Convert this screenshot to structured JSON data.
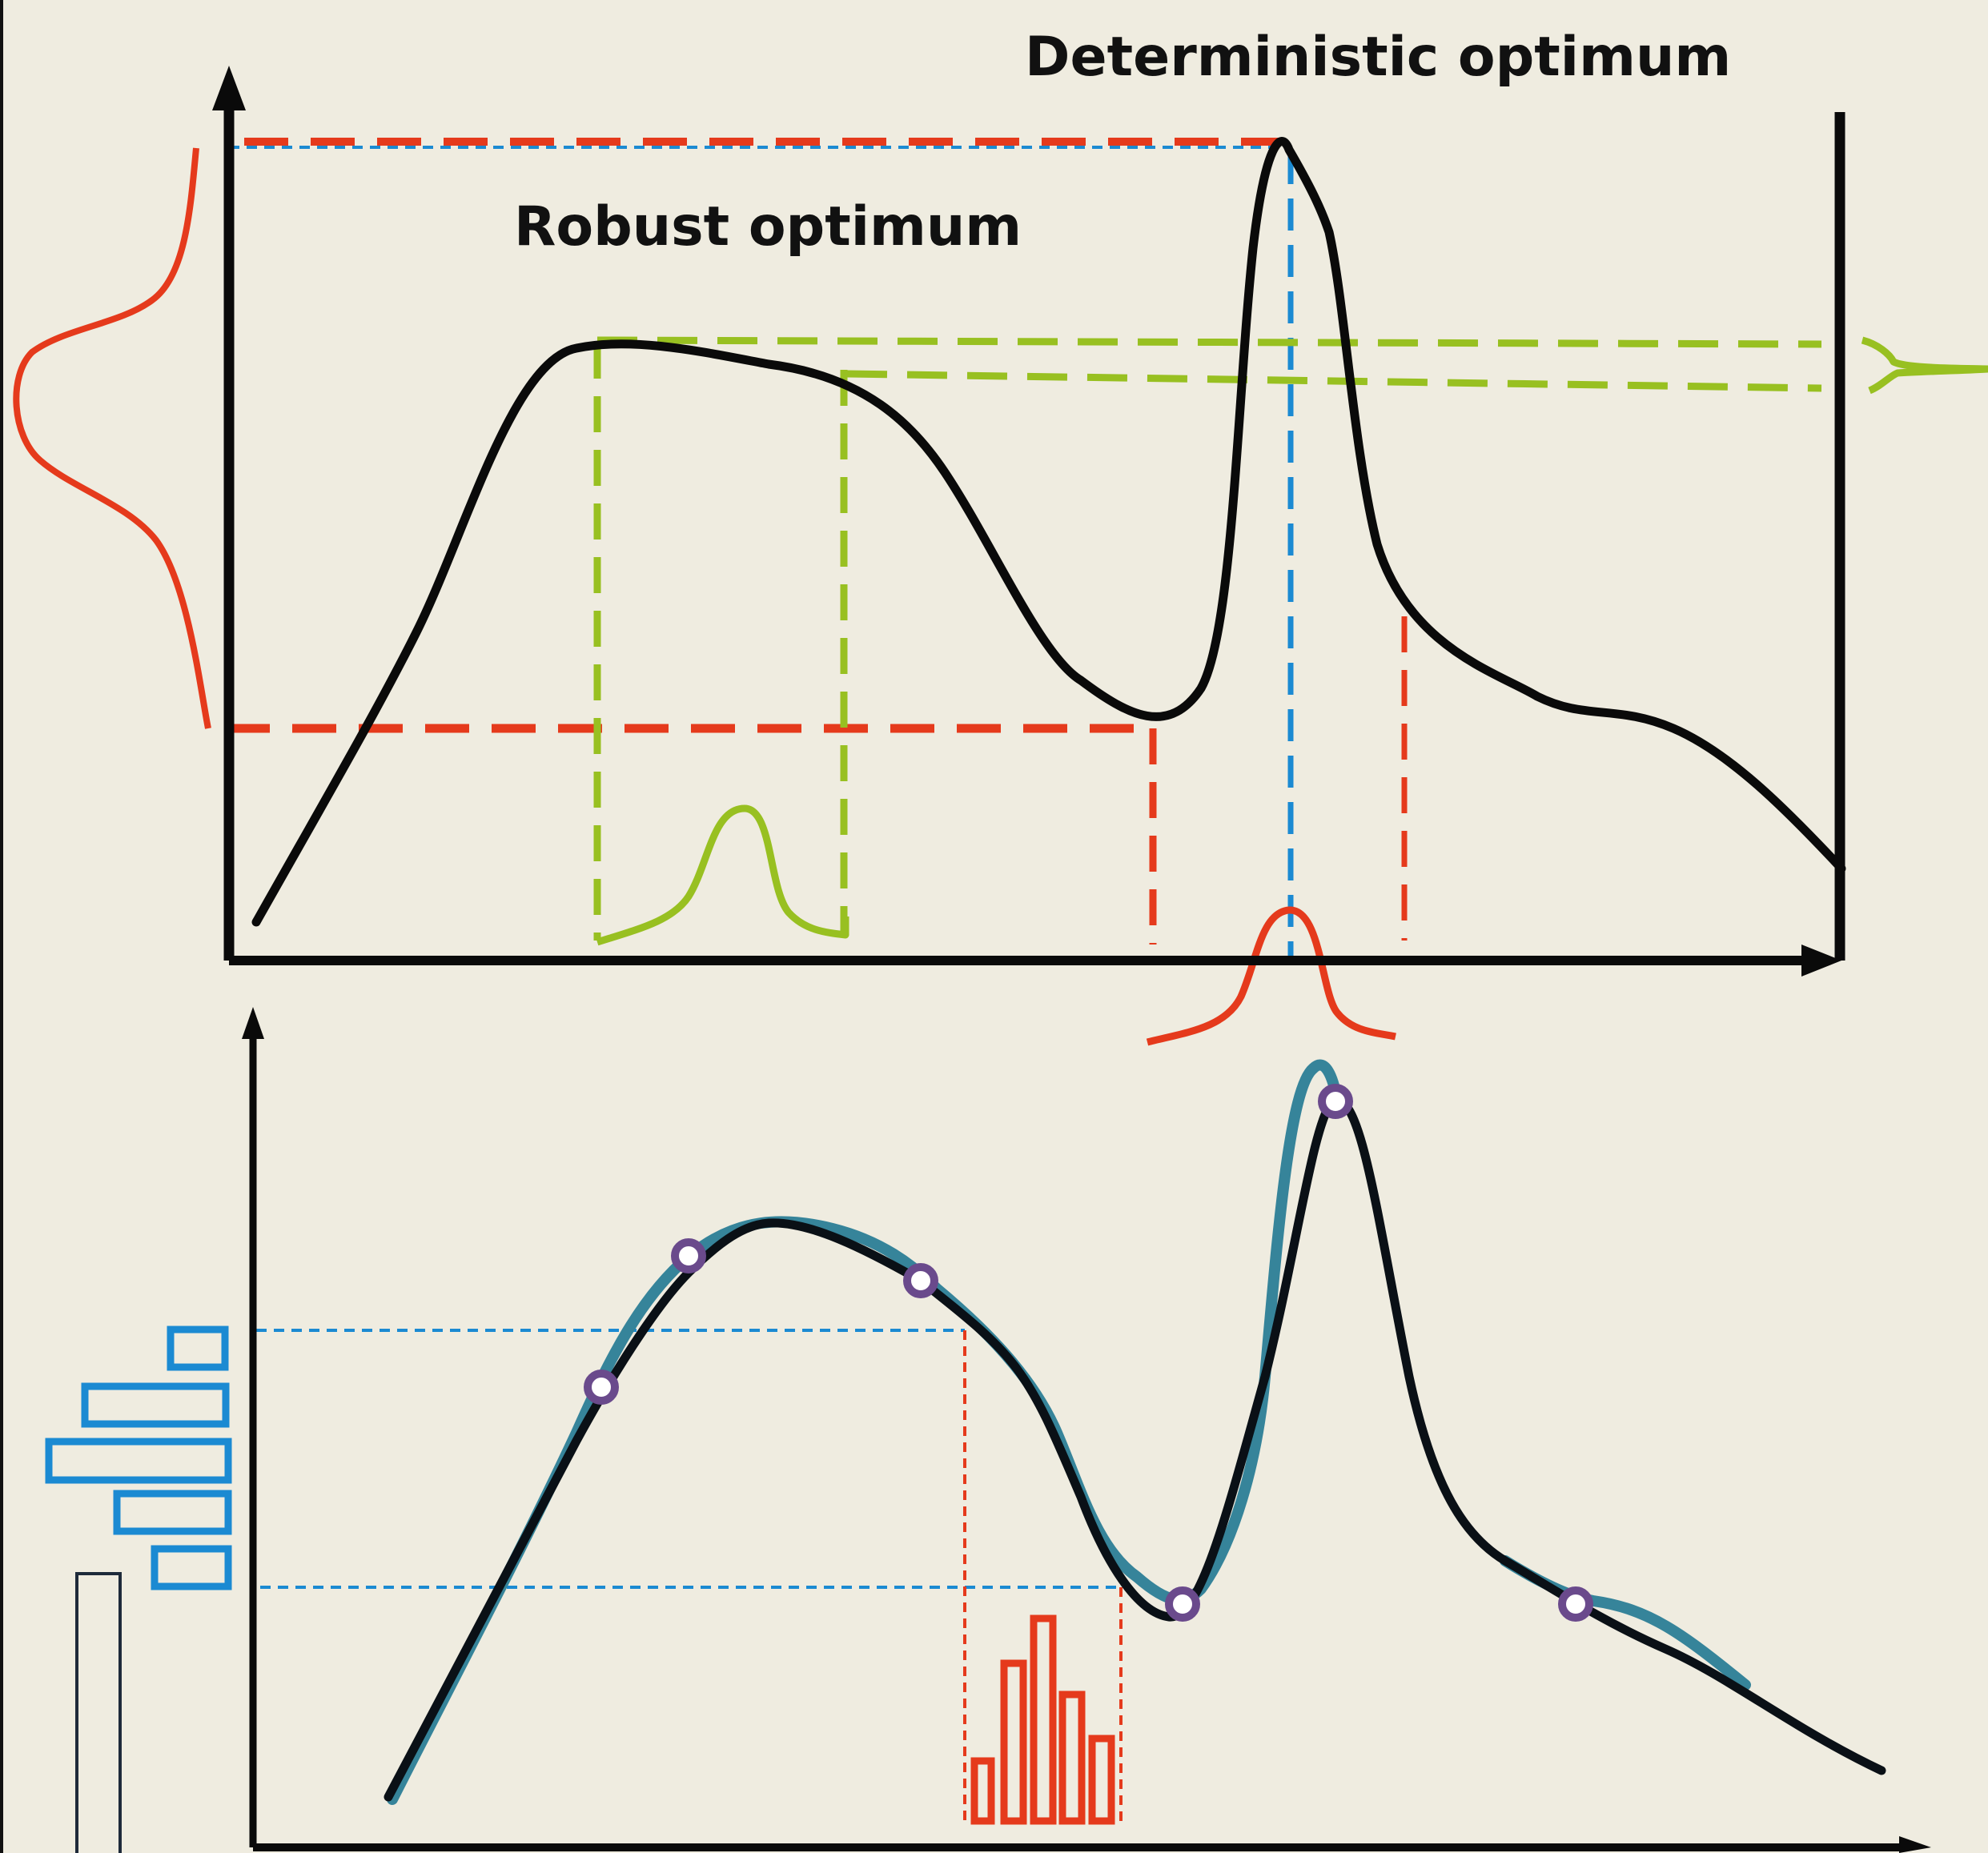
{
  "labels": {
    "deterministic_optimum": "Deterministic optimum",
    "robust_optimum": "Robust optimum"
  },
  "colors": {
    "background": "#efece0",
    "curve": "#0a0a0a",
    "red_dashed": "#e53a1c",
    "blue_dashed": "#1b8ad2",
    "green_dashed": "#98c021",
    "surrogate": "#36849a",
    "sample_marker": "#6a4a8c",
    "histogram_blue": "#1b8ad2",
    "histogram_red": "#e53a1c"
  },
  "icons": {
    "axis_arrow": "arrowhead-icon",
    "sample": "circle-marker-icon"
  }
}
